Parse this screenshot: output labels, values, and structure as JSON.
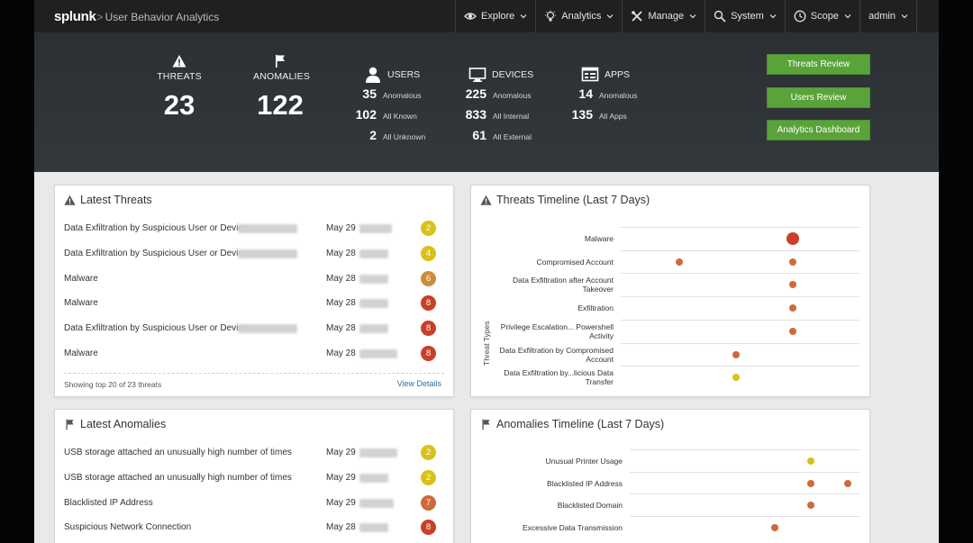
{
  "nav": {
    "logo": "splunk",
    "separator": ">",
    "app_name": "User Behavior Analytics",
    "menu": [
      {
        "label": "Explore",
        "icon": "eye-icon"
      },
      {
        "label": "Analytics",
        "icon": "lightbulb-icon"
      },
      {
        "label": "Manage",
        "icon": "tools-icon"
      },
      {
        "label": "System",
        "icon": "search-icon"
      },
      {
        "label": "Scope",
        "icon": "clock-icon"
      },
      {
        "label": "admin",
        "icon": ""
      }
    ]
  },
  "summary": {
    "threats": {
      "label": "THREATS",
      "value": "23"
    },
    "anomalies": {
      "label": "ANOMALIES",
      "value": "122"
    },
    "users": {
      "label": "USERS",
      "rows": [
        {
          "n": "35",
          "t": "Anomalous"
        },
        {
          "n": "102",
          "t": "All Known"
        },
        {
          "n": "2",
          "t": "All Unknown"
        }
      ]
    },
    "devices": {
      "label": "DEVICES",
      "rows": [
        {
          "n": "225",
          "t": "Anomalous"
        },
        {
          "n": "833",
          "t": "All Internal"
        },
        {
          "n": "61",
          "t": "All External"
        }
      ]
    },
    "apps": {
      "label": "APPS",
      "rows": [
        {
          "n": "14",
          "t": "Anomalous"
        },
        {
          "n": "135",
          "t": "All Apps"
        }
      ]
    },
    "buttons": {
      "threats_review": "Threats Review",
      "users_review": "Users Review",
      "analytics_dashboard": "Analytics Dashboard"
    }
  },
  "latest_threats": {
    "title": "Latest Threats",
    "rows": [
      {
        "name": "Data Exfiltration by Suspicious User or Device",
        "date": "May 29",
        "severity": "2"
      },
      {
        "name": "Data Exfiltration by Suspicious User or Device",
        "date": "May 28",
        "severity": "4"
      },
      {
        "name": "Malware",
        "date": "May 28",
        "severity": "6"
      },
      {
        "name": "Malware",
        "date": "May 28",
        "severity": "8"
      },
      {
        "name": "Data Exfiltration by Suspicious User or Device",
        "date": "May 28",
        "severity": "8"
      },
      {
        "name": "Malware",
        "date": "May 28",
        "severity": "8"
      }
    ],
    "footer": "Showing top 20 of 23 threats",
    "link": "View Details"
  },
  "latest_anomalies": {
    "title": "Latest Anomalies",
    "rows": [
      {
        "name": "USB storage attached an unusually high number of times",
        "date": "May 29",
        "severity": "2"
      },
      {
        "name": "USB storage attached an unusually high number of times",
        "date": "May 29",
        "severity": "2"
      },
      {
        "name": "Blacklisted IP Address",
        "date": "May 29",
        "severity": "7"
      },
      {
        "name": "Suspicious Network Connection",
        "date": "May 28",
        "severity": "8"
      }
    ]
  },
  "threats_timeline": {
    "title": "Threats Timeline (Last 7 Days)",
    "y_axis_label": "Threat Types",
    "rows": [
      {
        "label_lines": [
          "Malware"
        ]
      },
      {
        "label_lines": [
          "Compromised Account"
        ]
      },
      {
        "label_lines": [
          "Data Exfiltration after Account",
          "Takeover"
        ]
      },
      {
        "label_lines": [
          "Exfiltration"
        ]
      },
      {
        "label_lines": [
          "Privilege Escalation... Powershell",
          "Activity"
        ]
      },
      {
        "label_lines": [
          "Data Exfiltration by Compromised",
          "Account"
        ]
      },
      {
        "label_lines": [
          "Data Exfiltration by...licious Data",
          "Transfer"
        ]
      }
    ]
  },
  "anomalies_timeline": {
    "title": "Anomalies Timeline (Last 7 Days)",
    "rows": [
      {
        "label_lines": [
          "Unusual Printer Usage"
        ]
      },
      {
        "label_lines": [
          "Blacklisted IP Address"
        ]
      },
      {
        "label_lines": [
          "Blacklisted Domain"
        ]
      },
      {
        "label_lines": [
          "Excessive Data Transmission"
        ]
      }
    ]
  },
  "colors": {
    "sev_yellow": "#d8c21a",
    "sev_orange": "#cf8b3a",
    "sev_darkorange": "#cf6a3a",
    "sev_red": "#c8402a",
    "button_green": "#5aa33a",
    "link_blue": "#2b6ea6"
  }
}
